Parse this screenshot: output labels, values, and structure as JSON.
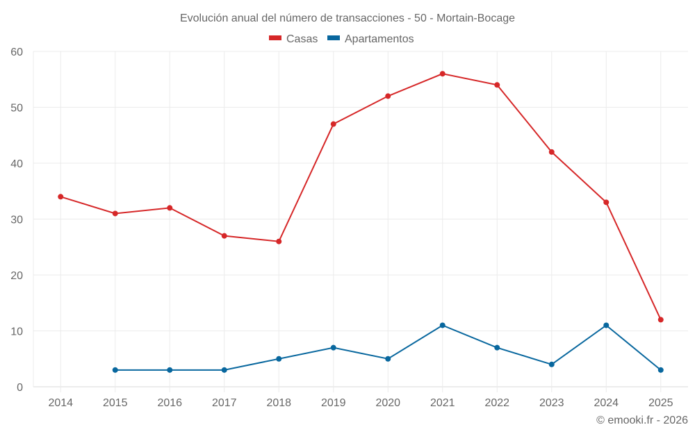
{
  "chart_data": {
    "type": "line",
    "title": "Evolución anual del número de transacciones - 50 - Mortain-Bocage",
    "xlabel": "",
    "ylabel": "",
    "categories": [
      "2014",
      "2015",
      "2016",
      "2017",
      "2018",
      "2019",
      "2020",
      "2021",
      "2022",
      "2023",
      "2024",
      "2025"
    ],
    "ylim": [
      0,
      60
    ],
    "yticks": [
      0,
      10,
      20,
      30,
      40,
      50,
      60
    ],
    "grid": true,
    "legend_position": "top-center",
    "series": [
      {
        "name": "Casas",
        "color": "#d62728",
        "values": [
          34,
          31,
          32,
          27,
          26,
          47,
          52,
          56,
          54,
          42,
          33,
          12
        ]
      },
      {
        "name": "Apartamentos",
        "color": "#08679e",
        "values": [
          null,
          3,
          3,
          3,
          5,
          7,
          5,
          11,
          7,
          4,
          11,
          3
        ]
      }
    ],
    "credit": "© emooki.fr - 2026"
  }
}
